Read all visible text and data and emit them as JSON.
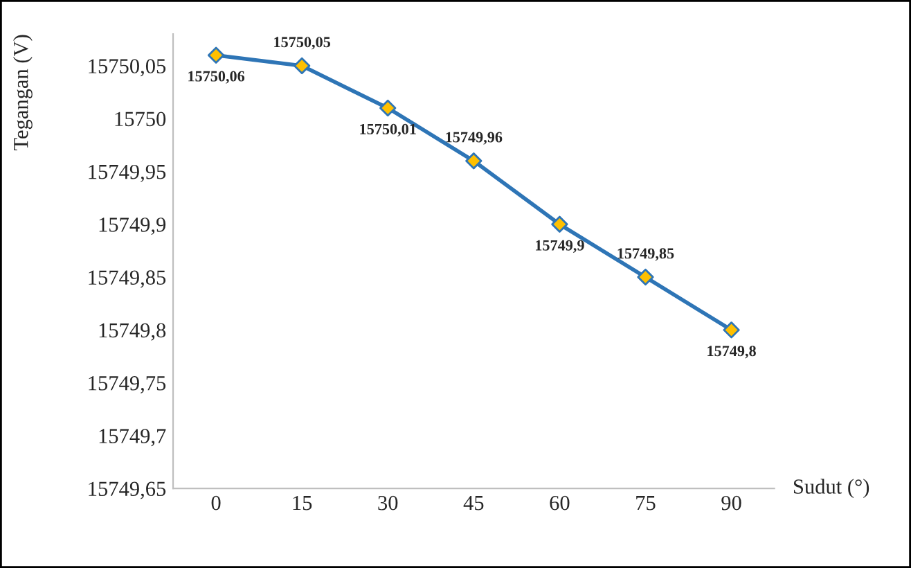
{
  "chart_data": {
    "type": "line",
    "xlabel": "Sudut (°)",
    "ylabel": "Tegangan (V)",
    "categories": [
      "0",
      "15",
      "30",
      "45",
      "60",
      "75",
      "90"
    ],
    "series": [
      {
        "color": "#2e75b6",
        "colors": [
          "#ffc000",
          "#ffc000",
          "#ffc000",
          "#ffc000",
          "#ffc000",
          "#ffc000",
          "#ffc000"
        ],
        "values": [
          15750.06,
          15750.05,
          15750.01,
          15749.96,
          15749.9,
          15749.85,
          15749.8
        ],
        "value_labels": [
          "15750,06",
          "15750,05",
          "15750,01",
          "15749,96",
          "15749,9",
          "15749,85",
          "15749,8"
        ]
      }
    ],
    "ylim": [
      15749.65,
      15750.08
    ],
    "yticks": [
      {
        "value": 15749.65,
        "label": "15749,65"
      },
      {
        "value": 15749.7,
        "label": "15749,7"
      },
      {
        "value": 15749.75,
        "label": "15749,75"
      },
      {
        "value": 15749.8,
        "label": "15749,8"
      },
      {
        "value": 15749.85,
        "label": "15749,85"
      },
      {
        "value": 15749.9,
        "label": "15749,9"
      },
      {
        "value": 15749.95,
        "label": "15749,95"
      },
      {
        "value": 15750.0,
        "label": "15750"
      },
      {
        "value": 15750.05,
        "label": "15750,05"
      }
    ],
    "marker": "diamond",
    "line_style": "solid",
    "grid": false,
    "legend": false
  }
}
